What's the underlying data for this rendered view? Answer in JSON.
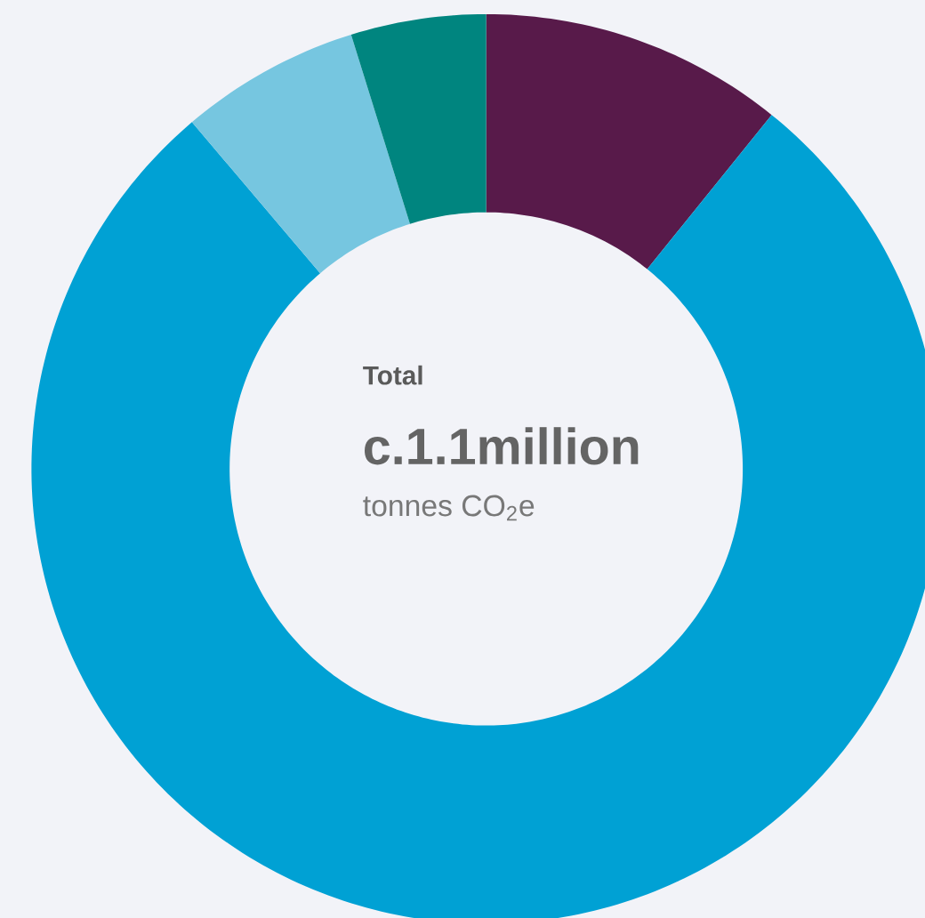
{
  "chart_data": {
    "type": "donut",
    "categories": [
      null,
      null,
      null,
      null
    ],
    "values": [
      10.8,
      78.0,
      6.4,
      4.8
    ],
    "colors": [
      "#581a4a",
      "#00a1d4",
      "#76c6e0",
      "#00857f"
    ],
    "annotations": [
      "Total",
      "c.1.1million",
      "tonnes CO$_{2}$e"
    ]
  }
}
